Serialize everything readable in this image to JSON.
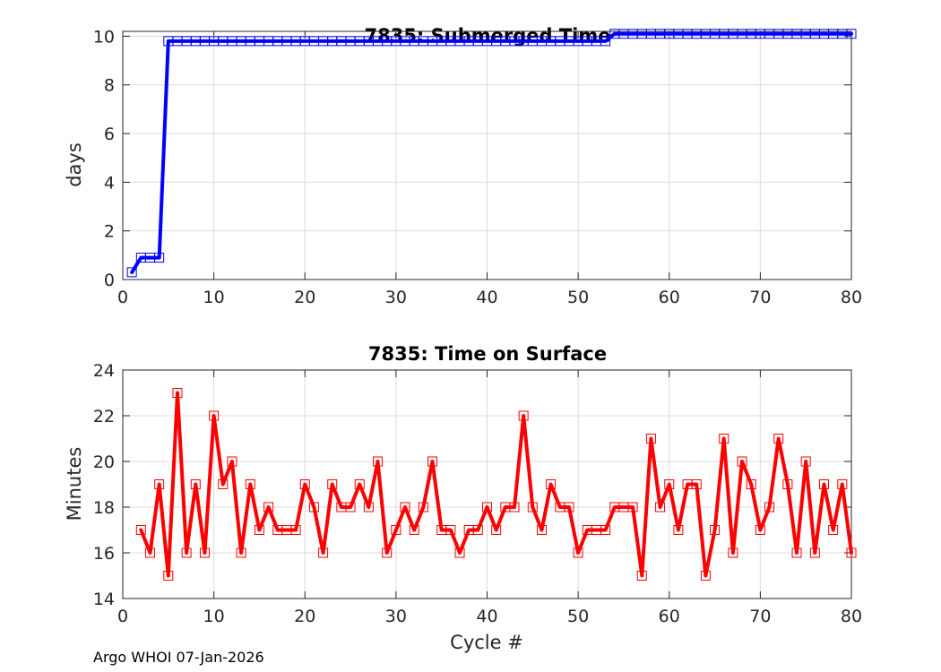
{
  "chart_data": [
    {
      "type": "line",
      "title": "7835: Submerged Time",
      "xlabel": "",
      "ylabel": "days",
      "xlim": [
        0,
        80
      ],
      "ylim": [
        0,
        10.2
      ],
      "xticks": [
        0,
        10,
        20,
        30,
        40,
        50,
        60,
        70,
        80
      ],
      "yticks": [
        0,
        2,
        4,
        6,
        8,
        10
      ],
      "grid": true,
      "color": "#0000ff",
      "marker": "square",
      "series": [
        {
          "name": "Submerged Time",
          "x": [
            1,
            2,
            3,
            4,
            5,
            6,
            7,
            8,
            9,
            10,
            11,
            12,
            13,
            14,
            15,
            16,
            17,
            18,
            19,
            20,
            21,
            22,
            23,
            24,
            25,
            26,
            27,
            28,
            29,
            30,
            31,
            32,
            33,
            34,
            35,
            36,
            37,
            38,
            39,
            40,
            41,
            42,
            43,
            44,
            45,
            46,
            47,
            48,
            49,
            50,
            51,
            52,
            53,
            54,
            55,
            56,
            57,
            58,
            59,
            60,
            61,
            62,
            63,
            64,
            65,
            66,
            67,
            68,
            69,
            70,
            71,
            72,
            73,
            74,
            75,
            76,
            77,
            78,
            79,
            80
          ],
          "values": [
            0.3,
            0.9,
            0.9,
            0.9,
            9.8,
            9.8,
            9.8,
            9.8,
            9.8,
            9.8,
            9.8,
            9.8,
            9.8,
            9.8,
            9.8,
            9.8,
            9.8,
            9.8,
            9.8,
            9.8,
            9.8,
            9.8,
            9.8,
            9.8,
            9.8,
            9.8,
            9.8,
            9.8,
            9.8,
            9.8,
            9.8,
            9.8,
            9.8,
            9.8,
            9.8,
            9.8,
            9.8,
            9.8,
            9.8,
            9.8,
            9.8,
            9.8,
            9.8,
            9.8,
            9.8,
            9.8,
            9.8,
            9.8,
            9.8,
            9.8,
            9.8,
            9.8,
            9.8,
            10.1,
            10.1,
            10.1,
            10.1,
            10.1,
            10.1,
            10.1,
            10.1,
            10.1,
            10.1,
            10.1,
            10.1,
            10.1,
            10.1,
            10.1,
            10.1,
            10.1,
            10.1,
            10.1,
            10.1,
            10.1,
            10.1,
            10.1,
            10.1,
            10.1,
            10.1,
            10.1
          ]
        }
      ]
    },
    {
      "type": "line",
      "title": "7835: Time on Surface",
      "xlabel": "Cycle #",
      "ylabel": "Minutes",
      "xlim": [
        0,
        80
      ],
      "ylim": [
        14,
        24
      ],
      "xticks": [
        0,
        10,
        20,
        30,
        40,
        50,
        60,
        70,
        80
      ],
      "yticks": [
        14,
        16,
        18,
        20,
        22,
        24
      ],
      "grid": true,
      "color": "#ff0000",
      "marker": "square",
      "series": [
        {
          "name": "Time on Surface",
          "x": [
            2,
            3,
            4,
            5,
            6,
            7,
            8,
            9,
            10,
            11,
            12,
            13,
            14,
            15,
            16,
            17,
            18,
            19,
            20,
            21,
            22,
            23,
            24,
            25,
            26,
            27,
            28,
            29,
            30,
            31,
            32,
            33,
            34,
            35,
            36,
            37,
            38,
            39,
            40,
            41,
            42,
            43,
            44,
            45,
            46,
            47,
            48,
            49,
            50,
            51,
            52,
            53,
            54,
            55,
            56,
            57,
            58,
            59,
            60,
            61,
            62,
            63,
            64,
            65,
            66,
            67,
            68,
            69,
            70,
            71,
            72,
            73,
            74,
            75,
            76,
            77,
            78,
            79,
            80
          ],
          "values": [
            17,
            16,
            19,
            15,
            23,
            16,
            19,
            16,
            22,
            19,
            20,
            16,
            19,
            17,
            18,
            17,
            17,
            17,
            19,
            18,
            16,
            19,
            18,
            18,
            19,
            18,
            20,
            16,
            17,
            18,
            17,
            18,
            20,
            17,
            17,
            16,
            17,
            17,
            18,
            17,
            18,
            18,
            22,
            18,
            17,
            19,
            18,
            18,
            16,
            17,
            17,
            17,
            18,
            18,
            18,
            15,
            21,
            18,
            19,
            17,
            19,
            19,
            15,
            17,
            21,
            16,
            20,
            19,
            17,
            18,
            21,
            19,
            16,
            20,
            16,
            19,
            17,
            19,
            16
          ]
        }
      ]
    }
  ],
  "footer": "Argo WHOI 07-Jan-2026"
}
